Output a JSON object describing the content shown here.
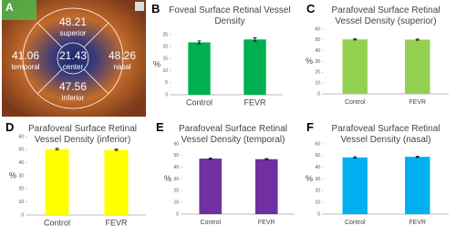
{
  "image_panel": {
    "panel": "A",
    "readings": [
      {
        "value": 48.21,
        "region": "superior"
      },
      {
        "value": 41.06,
        "region": "temporal"
      },
      {
        "value": 21.43,
        "region": "center"
      },
      {
        "value": 48.26,
        "region": "nasal"
      },
      {
        "value": 47.56,
        "region": "inferior"
      }
    ]
  },
  "chart_data": [
    {
      "type": "bar",
      "panel": "B",
      "title": "Foveal Surface Retinal Vessel Density",
      "y_label": "%",
      "categories": [
        "Control",
        "FEVR"
      ],
      "values": [
        21.8,
        23.0
      ],
      "errors": [
        0.6,
        0.7
      ],
      "color": "#00b050",
      "ylim": [
        0,
        25
      ],
      "yticks": [
        0,
        5,
        10,
        15,
        20,
        25
      ]
    },
    {
      "type": "bar",
      "panel": "C",
      "title": "Parafoveal Surface Retinal Vessel Density (superior)",
      "y_label": "%",
      "categories": [
        "Control",
        "FEVR"
      ],
      "values": [
        50.5,
        50.3
      ],
      "errors": [
        0.5,
        0.5
      ],
      "color": "#92d050",
      "ylim": [
        0,
        60
      ],
      "yticks": [
        0,
        10,
        20,
        30,
        40,
        50,
        60
      ]
    },
    {
      "type": "bar",
      "panel": "D",
      "title": "Parafoveal Surface Retinal Vessel Density (inferior)",
      "y_label": "%",
      "categories": [
        "Control",
        "FEVR"
      ],
      "values": [
        50.5,
        50.0
      ],
      "errors": [
        0.6,
        0.5
      ],
      "color": "#ffff00",
      "ylim": [
        0,
        60
      ],
      "yticks": [
        0,
        10,
        20,
        30,
        40,
        50,
        60
      ]
    },
    {
      "type": "bar",
      "panel": "E",
      "title": "Parafoveal Surface Retinal Vessel Density (temporal)",
      "y_label": "%",
      "categories": [
        "Control",
        "FEVR"
      ],
      "values": [
        47.5,
        47.0
      ],
      "errors": [
        0.5,
        0.5
      ],
      "color": "#7030a0",
      "ylim": [
        0,
        60
      ],
      "yticks": [
        0,
        10,
        20,
        30,
        40,
        50,
        60
      ]
    },
    {
      "type": "bar",
      "panel": "F",
      "title": "Parafoveal Surface Retinal Vessel Density (nasal)",
      "y_label": "%",
      "categories": [
        "Control",
        "FEVR"
      ],
      "values": [
        48.5,
        49.0
      ],
      "errors": [
        0.6,
        0.6
      ],
      "color": "#00b0f0",
      "ylim": [
        0,
        60
      ],
      "yticks": [
        0,
        10,
        20,
        30,
        40,
        50,
        60
      ]
    }
  ]
}
